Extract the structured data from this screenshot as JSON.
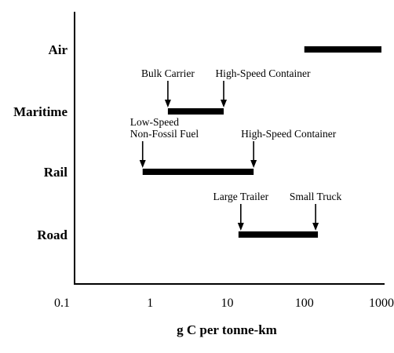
{
  "chart_data": {
    "type": "range-bar",
    "xlabel": "g C per tonne-km",
    "xscale": "log",
    "xlim": [
      0.1,
      1000
    ],
    "xticks": [
      {
        "value": 0.1,
        "label": "0.1"
      },
      {
        "value": 1,
        "label": "1"
      },
      {
        "value": 10,
        "label": "10"
      },
      {
        "value": 100,
        "label": "100"
      },
      {
        "value": 1000,
        "label": "1000"
      }
    ],
    "categories": [
      "Air",
      "Maritime",
      "Rail",
      "Road"
    ],
    "ranges": [
      {
        "category": "Air",
        "min": 100,
        "max": 1000
      },
      {
        "category": "Maritime",
        "min": 1.7,
        "max": 9
      },
      {
        "category": "Rail",
        "min": 0.8,
        "max": 22
      },
      {
        "category": "Road",
        "min": 14,
        "max": 150
      }
    ],
    "annotations": [
      {
        "category": "Maritime",
        "x": 1.7,
        "lines": [
          "Bulk Carrier"
        ]
      },
      {
        "category": "Maritime",
        "x": 9,
        "lines": [
          "High-Speed Container"
        ]
      },
      {
        "category": "Rail",
        "x": 0.8,
        "lines": [
          "Low-Speed",
          "Non-Fossil Fuel"
        ]
      },
      {
        "category": "Rail",
        "x": 22,
        "lines": [
          "High-Speed Container"
        ]
      },
      {
        "category": "Road",
        "x": 15,
        "lines": [
          "Large Trailer"
        ]
      },
      {
        "category": "Road",
        "x": 140,
        "lines": [
          "Small Truck"
        ]
      }
    ]
  }
}
